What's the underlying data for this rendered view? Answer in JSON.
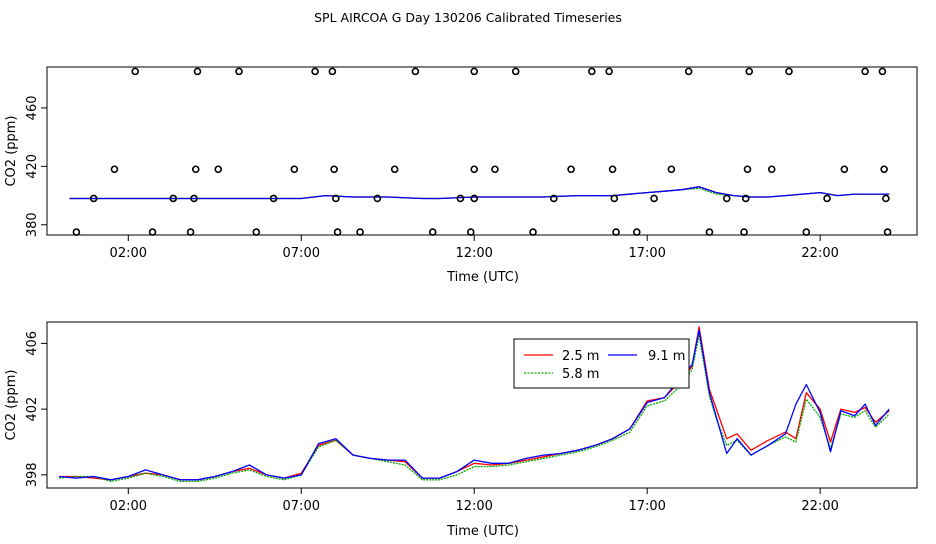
{
  "figure": {
    "title": "SPL AIRCOA G  Day 130206  Calibrated Timeseries"
  },
  "chart_data": [
    {
      "type": "line",
      "xlabel": "Time (UTC)",
      "ylabel": "CO2 (ppm)",
      "xtick_labels": [
        "02:00",
        "07:00",
        "12:00",
        "17:00",
        "22:00"
      ],
      "xtick_values": [
        2,
        7,
        12,
        17,
        22
      ],
      "ytick_labels": [
        "380",
        "420",
        "460"
      ],
      "ytick_values": [
        380,
        420,
        460
      ],
      "xlim": [
        -0.35,
        24.8
      ],
      "ylim": [
        373,
        488
      ],
      "grid": false,
      "series": [
        {
          "color": "#ff0000",
          "x": [
            0.3,
            1.0,
            2.0,
            3.0,
            4.0,
            5.0,
            6.0,
            7.0,
            7.7,
            8.5,
            9.5,
            10.5,
            11.0,
            12.0,
            13.0,
            14.0,
            15.0,
            16.0,
            17.0,
            17.5,
            18.0,
            18.5,
            19.0,
            19.5,
            20.0,
            20.5,
            21.0,
            21.5,
            22.0,
            22.5,
            23.0,
            23.5,
            24.0
          ],
          "y": [
            398,
            398,
            398,
            398,
            398,
            398,
            398,
            398,
            400,
            399,
            399,
            398,
            398,
            399,
            399,
            399,
            400,
            400,
            402,
            403,
            404,
            406,
            402,
            400,
            399,
            399,
            400,
            401,
            402,
            400,
            401,
            401,
            401
          ]
        },
        {
          "color": "#00aa00",
          "x": [
            0.3,
            1.0,
            2.0,
            3.0,
            4.0,
            5.0,
            6.0,
            7.0,
            7.7,
            8.5,
            9.5,
            10.5,
            11.0,
            12.0,
            13.0,
            14.0,
            15.0,
            16.0,
            17.0,
            17.5,
            18.0,
            18.5,
            19.0,
            19.5,
            20.0,
            20.5,
            21.0,
            21.5,
            22.0,
            22.5,
            23.0,
            23.5,
            24.0
          ],
          "y": [
            398,
            398,
            398,
            398,
            398,
            398,
            398,
            398,
            400,
            399,
            399,
            398,
            398,
            399,
            399,
            399,
            400,
            400,
            402,
            403,
            404,
            405,
            401,
            400,
            399,
            399,
            400,
            401,
            402,
            400,
            401,
            401,
            401
          ]
        },
        {
          "color": "#0000ff",
          "x": [
            0.3,
            1.0,
            2.0,
            3.0,
            4.0,
            5.0,
            6.0,
            7.0,
            7.7,
            8.5,
            9.5,
            10.5,
            11.0,
            12.0,
            13.0,
            14.0,
            15.0,
            16.0,
            17.0,
            17.5,
            18.0,
            18.5,
            19.0,
            19.5,
            20.0,
            20.5,
            21.0,
            21.5,
            22.0,
            22.5,
            23.0,
            23.5,
            24.0
          ],
          "y": [
            398,
            398,
            398,
            398,
            398,
            398,
            398,
            398,
            400,
            399,
            399,
            398,
            398,
            399,
            399,
            399,
            400,
            400,
            402,
            403,
            404,
            406,
            402,
            400,
            399,
            399,
            400,
            401,
            402,
            400,
            401,
            401,
            401
          ]
        }
      ],
      "markers": {
        "style": "open-circle",
        "points": [
          [
            0.5,
            375
          ],
          [
            1.0,
            398
          ],
          [
            1.6,
            418
          ],
          [
            2.2,
            485
          ],
          [
            2.7,
            375
          ],
          [
            3.3,
            398
          ],
          [
            3.8,
            375
          ],
          [
            3.9,
            398
          ],
          [
            3.95,
            418
          ],
          [
            4.0,
            485
          ],
          [
            4.6,
            418
          ],
          [
            5.2,
            485
          ],
          [
            5.7,
            375
          ],
          [
            6.2,
            398
          ],
          [
            6.8,
            418
          ],
          [
            7.4,
            485
          ],
          [
            7.9,
            485
          ],
          [
            7.95,
            418
          ],
          [
            8.0,
            398
          ],
          [
            8.05,
            375
          ],
          [
            8.7,
            375
          ],
          [
            9.2,
            398
          ],
          [
            9.7,
            418
          ],
          [
            10.3,
            485
          ],
          [
            10.8,
            375
          ],
          [
            11.6,
            398
          ],
          [
            11.9,
            375
          ],
          [
            12.0,
            398
          ],
          [
            12.0,
            418
          ],
          [
            12.0,
            485
          ],
          [
            12.6,
            418
          ],
          [
            13.2,
            485
          ],
          [
            13.7,
            375
          ],
          [
            14.3,
            398
          ],
          [
            14.8,
            418
          ],
          [
            15.4,
            485
          ],
          [
            15.9,
            485
          ],
          [
            16.0,
            418
          ],
          [
            16.05,
            398
          ],
          [
            16.1,
            375
          ],
          [
            16.7,
            375
          ],
          [
            17.2,
            398
          ],
          [
            17.7,
            418
          ],
          [
            18.2,
            485
          ],
          [
            18.8,
            375
          ],
          [
            19.3,
            398
          ],
          [
            19.8,
            375
          ],
          [
            19.85,
            398
          ],
          [
            19.9,
            418
          ],
          [
            19.95,
            485
          ],
          [
            20.6,
            418
          ],
          [
            21.1,
            485
          ],
          [
            21.6,
            375
          ],
          [
            22.2,
            398
          ],
          [
            22.7,
            418
          ],
          [
            23.3,
            485
          ],
          [
            23.8,
            485
          ],
          [
            23.85,
            418
          ],
          [
            23.9,
            398
          ],
          [
            23.95,
            375
          ]
        ]
      }
    },
    {
      "type": "line",
      "xlabel": "Time (UTC)",
      "ylabel": "CO2 (ppm)",
      "xtick_labels": [
        "02:00",
        "07:00",
        "12:00",
        "17:00",
        "22:00"
      ],
      "xtick_values": [
        2,
        7,
        12,
        17,
        22
      ],
      "ytick_labels": [
        "398",
        "402",
        "406"
      ],
      "ytick_values": [
        398,
        402,
        406
      ],
      "xlim": [
        -0.35,
        24.8
      ],
      "ylim": [
        397.2,
        407.3
      ],
      "grid": false,
      "legend": {
        "position": "top-center"
      },
      "series": [
        {
          "name": "2.5 m",
          "color": "#ff0000",
          "x": [
            0.0,
            0.5,
            1.0,
            1.5,
            2.0,
            2.5,
            3.0,
            3.5,
            4.0,
            4.5,
            5.0,
            5.5,
            6.0,
            6.5,
            7.0,
            7.5,
            8.0,
            8.5,
            9.0,
            9.5,
            10.0,
            10.5,
            11.0,
            11.5,
            12.0,
            12.5,
            13.0,
            13.5,
            14.0,
            14.5,
            15.0,
            15.5,
            16.0,
            16.5,
            17.0,
            17.5,
            18.0,
            18.3,
            18.5,
            18.8,
            19.0,
            19.3,
            19.6,
            20.0,
            20.5,
            21.0,
            21.3,
            21.6,
            22.0,
            22.3,
            22.6,
            23.0,
            23.3,
            23.6,
            24.0
          ],
          "y": [
            397.9,
            397.9,
            397.8,
            397.7,
            397.9,
            398.1,
            398.0,
            397.7,
            397.7,
            397.9,
            398.2,
            398.4,
            398.0,
            397.8,
            398.1,
            399.8,
            400.1,
            399.2,
            399.0,
            398.9,
            398.8,
            397.8,
            397.8,
            398.2,
            398.7,
            398.6,
            398.7,
            398.9,
            399.1,
            399.3,
            399.5,
            399.8,
            400.2,
            400.8,
            402.5,
            402.7,
            403.8,
            404.6,
            407.0,
            403.2,
            402.0,
            400.2,
            400.5,
            399.5,
            400.1,
            400.6,
            400.2,
            403.0,
            402.0,
            400.0,
            402.0,
            401.8,
            402.1,
            401.2,
            401.9
          ]
        },
        {
          "name": "5.8 m",
          "color": "#00aa00",
          "x": [
            0.0,
            0.5,
            1.0,
            1.5,
            2.0,
            2.5,
            3.0,
            3.5,
            4.0,
            4.5,
            5.0,
            5.5,
            6.0,
            6.5,
            7.0,
            7.5,
            8.0,
            8.5,
            9.0,
            9.5,
            10.0,
            10.5,
            11.0,
            11.5,
            12.0,
            12.5,
            13.0,
            13.5,
            14.0,
            14.5,
            15.0,
            15.5,
            16.0,
            16.5,
            17.0,
            17.5,
            18.0,
            18.3,
            18.5,
            18.8,
            19.0,
            19.3,
            19.6,
            20.0,
            20.5,
            21.0,
            21.3,
            21.6,
            22.0,
            22.3,
            22.6,
            23.0,
            23.3,
            23.6,
            24.0
          ],
          "y": [
            397.8,
            397.9,
            397.9,
            397.6,
            397.8,
            398.1,
            397.9,
            397.6,
            397.6,
            397.8,
            398.1,
            398.3,
            397.9,
            397.7,
            398.0,
            399.7,
            400.1,
            399.2,
            399.0,
            398.8,
            398.6,
            397.7,
            397.7,
            398.0,
            398.5,
            398.5,
            398.6,
            398.8,
            399.0,
            399.2,
            399.4,
            399.7,
            400.1,
            400.6,
            402.2,
            402.5,
            403.5,
            404.4,
            406.5,
            402.8,
            401.4,
            399.8,
            400.1,
            399.2,
            399.8,
            400.3,
            400.0,
            402.6,
            401.5,
            399.6,
            401.7,
            401.5,
            401.9,
            400.9,
            401.7
          ]
        },
        {
          "name": "9.1 m",
          "color": "#0000ff",
          "x": [
            0.0,
            0.5,
            1.0,
            1.5,
            2.0,
            2.5,
            3.0,
            3.5,
            4.0,
            4.5,
            5.0,
            5.5,
            6.0,
            6.5,
            7.0,
            7.5,
            8.0,
            8.5,
            9.0,
            9.5,
            10.0,
            10.5,
            11.0,
            11.5,
            12.0,
            12.5,
            13.0,
            13.5,
            14.0,
            14.5,
            15.0,
            15.5,
            16.0,
            16.5,
            17.0,
            17.5,
            18.0,
            18.3,
            18.5,
            18.8,
            19.0,
            19.3,
            19.6,
            20.0,
            20.5,
            21.0,
            21.3,
            21.6,
            22.0,
            22.3,
            22.6,
            23.0,
            23.3,
            23.6,
            24.0
          ],
          "y": [
            397.9,
            397.8,
            397.9,
            397.7,
            397.9,
            398.3,
            398.0,
            397.7,
            397.7,
            397.9,
            398.2,
            398.6,
            398.0,
            397.8,
            398.0,
            399.9,
            400.2,
            399.2,
            399.0,
            398.9,
            398.9,
            397.8,
            397.8,
            398.2,
            398.9,
            398.7,
            398.7,
            399.0,
            399.2,
            399.3,
            399.5,
            399.8,
            400.2,
            400.8,
            402.4,
            402.7,
            404.0,
            404.7,
            406.8,
            403.0,
            401.5,
            399.3,
            400.2,
            399.2,
            399.8,
            400.5,
            402.3,
            403.5,
            401.8,
            399.4,
            401.9,
            401.6,
            402.3,
            401.0,
            402.0
          ]
        }
      ]
    }
  ]
}
